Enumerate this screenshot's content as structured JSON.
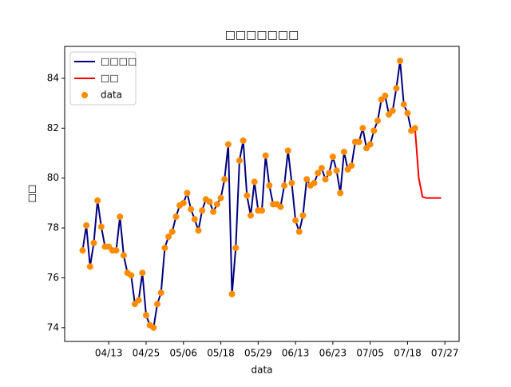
{
  "chart_data": {
    "type": "line",
    "title": "□□□□□□□",
    "xlabel": "data",
    "ylabel": "□□",
    "x": [
      0,
      1,
      2,
      3,
      4,
      5,
      6,
      7,
      8,
      9,
      10,
      11,
      12,
      13,
      14,
      15,
      16,
      17,
      18,
      19,
      20,
      21,
      22,
      23,
      24,
      25,
      26,
      27,
      28,
      29,
      30,
      31,
      32,
      33,
      34,
      35,
      36,
      37,
      38,
      39,
      40,
      41,
      42,
      43,
      44,
      45,
      46,
      47,
      48,
      49,
      50,
      51,
      52,
      53,
      54,
      55,
      56,
      57,
      58,
      59,
      60,
      61,
      62,
      63,
      64,
      65,
      66,
      67,
      68,
      69,
      70,
      71,
      72,
      73,
      74,
      75,
      76,
      77,
      78,
      79,
      80,
      81,
      82,
      83,
      84,
      85,
      86,
      87,
      88,
      89
    ],
    "series": [
      {
        "name": "□□□□",
        "kind": "line",
        "color": "#000080",
        "values": [
          77.1,
          78.1,
          76.45,
          77.4,
          79.1,
          78.05,
          77.25,
          77.25,
          77.1,
          77.1,
          78.45,
          76.9,
          76.2,
          76.1,
          74.95,
          75.1,
          76.2,
          74.5,
          74.1,
          74.0,
          74.95,
          75.4,
          77.2,
          77.65,
          77.85,
          78.45,
          78.9,
          79.0,
          79.4,
          78.75,
          78.35,
          77.9,
          78.7,
          79.15,
          79.05,
          78.65,
          78.95,
          79.2,
          79.95,
          81.35,
          75.35,
          77.2,
          80.7,
          81.5,
          79.3,
          78.5,
          79.85,
          78.7,
          78.7,
          80.9,
          79.7,
          78.95,
          78.95,
          78.85,
          79.7,
          81.1,
          79.8,
          78.3,
          77.85,
          78.5,
          79.95,
          79.7,
          79.8,
          80.2,
          80.4,
          79.95,
          80.2,
          80.85,
          80.3,
          79.4,
          81.05,
          80.35,
          80.5,
          81.45,
          81.45,
          82.0,
          81.2,
          81.35,
          81.9,
          82.3,
          83.15,
          83.3,
          82.55,
          82.7,
          83.6,
          84.7,
          82.95,
          82.6,
          81.9,
          82.0
        ]
      },
      {
        "name": "□□",
        "kind": "line",
        "color": "#ff0000",
        "x": [
          88,
          89,
          90,
          91,
          92,
          93,
          94,
          95,
          96
        ],
        "values": [
          81.9,
          82.0,
          80.0,
          79.25,
          79.2,
          79.2,
          79.2,
          79.2,
          79.2
        ]
      },
      {
        "name": "data",
        "kind": "scatter",
        "color": "#ff8c00",
        "values": [
          77.1,
          78.1,
          76.45,
          77.4,
          79.1,
          78.05,
          77.25,
          77.25,
          77.1,
          77.1,
          78.45,
          76.9,
          76.2,
          76.1,
          74.95,
          75.1,
          76.2,
          74.5,
          74.1,
          74.0,
          74.95,
          75.4,
          77.2,
          77.65,
          77.85,
          78.45,
          78.9,
          79.0,
          79.4,
          78.75,
          78.35,
          77.9,
          78.7,
          79.15,
          79.05,
          78.65,
          78.95,
          79.2,
          79.95,
          81.35,
          75.35,
          77.2,
          80.7,
          81.5,
          79.3,
          78.5,
          79.85,
          78.7,
          78.7,
          80.9,
          79.7,
          78.95,
          78.95,
          78.85,
          79.7,
          81.1,
          79.8,
          78.3,
          77.85,
          78.5,
          79.95,
          79.7,
          79.8,
          80.2,
          80.4,
          79.95,
          80.2,
          80.85,
          80.3,
          79.4,
          81.05,
          80.35,
          80.5,
          81.45,
          81.45,
          82.0,
          81.2,
          81.35,
          81.9,
          82.3,
          83.15,
          83.3,
          82.55,
          82.7,
          83.6,
          84.7,
          82.95,
          82.6,
          81.9,
          82.0
        ]
      }
    ],
    "xlim": [
      -4.8,
      100.8
    ],
    "xticks": [
      {
        "value": 7,
        "label": "04/13"
      },
      {
        "value": 17,
        "label": "04/25"
      },
      {
        "value": 27,
        "label": "05/06"
      },
      {
        "value": 37,
        "label": "05/18"
      },
      {
        "value": 47,
        "label": "05/29"
      },
      {
        "value": 57,
        "label": "06/13"
      },
      {
        "value": 67,
        "label": "06/23"
      },
      {
        "value": 77,
        "label": "07/05"
      },
      {
        "value": 87,
        "label": "07/18"
      },
      {
        "value": 97,
        "label": "07/27"
      }
    ],
    "ylim": [
      73.45,
      85.28
    ],
    "yticks": [
      74,
      76,
      78,
      80,
      82,
      84
    ],
    "grid": false,
    "legend": "upper-left"
  }
}
